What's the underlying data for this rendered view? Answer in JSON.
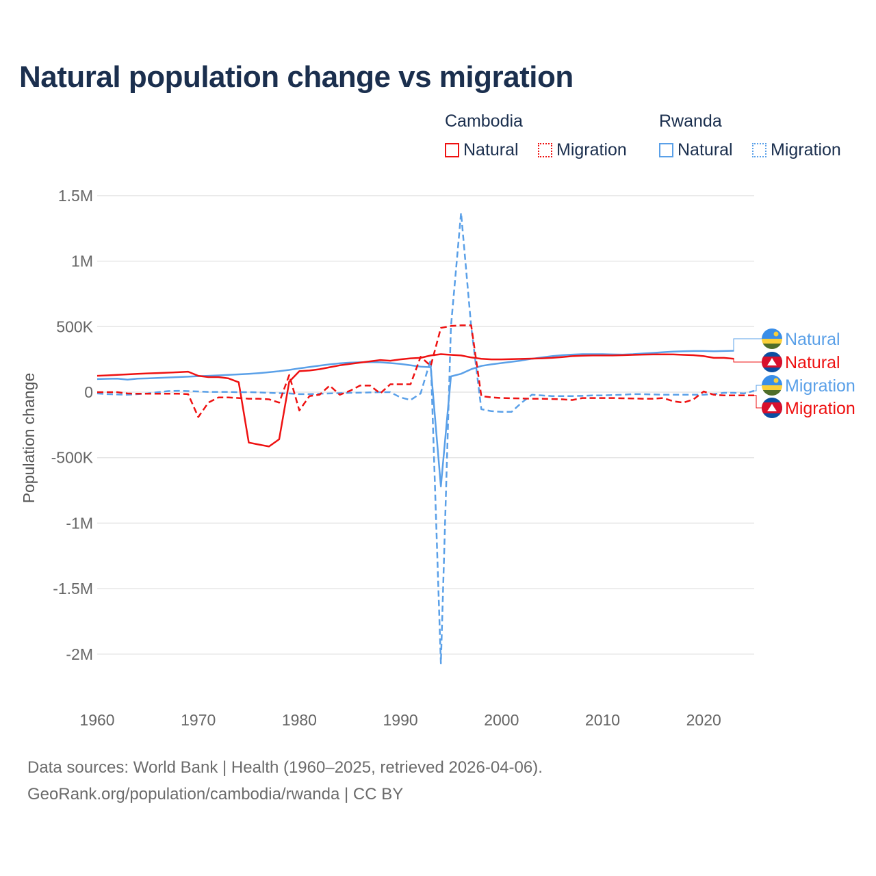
{
  "title": "Natural population change vs migration",
  "legend": {
    "groups": [
      {
        "name": "Cambodia",
        "items": [
          {
            "label": "Natural",
            "style": "solid"
          },
          {
            "label": "Migration",
            "style": "dotted"
          }
        ],
        "color": "#ee1111"
      },
      {
        "name": "Rwanda",
        "items": [
          {
            "label": "Natural",
            "style": "solid"
          },
          {
            "label": "Migration",
            "style": "dotted"
          }
        ],
        "color": "#5aa0e8"
      }
    ]
  },
  "footer": {
    "line1": "Data sources: World Bank | Health (1960–2025, retrieved 2026-04-06).",
    "line2": "GeoRank.org/population/cambodia/rwanda | CC BY"
  },
  "chart_data": {
    "type": "line",
    "title": "Natural population change vs migration",
    "xlabel": "",
    "ylabel": "Population change",
    "xlim": [
      1960,
      2025
    ],
    "ylim": [
      -2200000,
      1600000
    ],
    "x_ticks": [
      1960,
      1970,
      1980,
      1990,
      2000,
      2010,
      2020
    ],
    "x_tick_labels": [
      "1960",
      "1970",
      "1980",
      "1990",
      "2000",
      "2010",
      "2020"
    ],
    "y_ticks": [
      1500000,
      1000000,
      500000,
      0,
      -500000,
      -1000000,
      -1500000,
      -2000000
    ],
    "y_tick_labels": [
      "1.5M",
      "1M",
      "500K",
      "0",
      "-500K",
      "-1M",
      "-1.5M",
      "-2M"
    ],
    "grid": true,
    "legend_placement": "top-right",
    "x_start": 1960,
    "unit": "thousands",
    "series": [
      {
        "name": "Rwanda Natural",
        "label": "Natural",
        "color": "#5aa0e8",
        "dash": false,
        "flag": "rwanda",
        "values": [
          100,
          102,
          103,
          95,
          103,
          105,
          108,
          112,
          115,
          118,
          122,
          125,
          128,
          132,
          136,
          140,
          145,
          152,
          160,
          170,
          182,
          192,
          202,
          212,
          220,
          225,
          228,
          230,
          228,
          222,
          215,
          205,
          195,
          190,
          -720,
          120,
          140,
          175,
          200,
          212,
          222,
          232,
          242,
          255,
          265,
          275,
          282,
          287,
          290,
          290,
          290,
          288,
          287,
          290,
          295,
          300,
          305,
          310,
          312,
          314,
          314,
          312,
          314,
          316,
          null,
          null
        ]
      },
      {
        "name": "Cambodia Natural",
        "label": "Natural",
        "color": "#ee1111",
        "dash": false,
        "flag": "cambodia",
        "values": [
          125,
          128,
          132,
          136,
          140,
          143,
          146,
          149,
          152,
          156,
          125,
          115,
          115,
          105,
          75,
          -385,
          -400,
          -415,
          -360,
          80,
          160,
          165,
          175,
          190,
          205,
          215,
          225,
          235,
          245,
          240,
          250,
          258,
          262,
          280,
          290,
          285,
          280,
          265,
          255,
          250,
          250,
          252,
          254,
          256,
          258,
          262,
          268,
          275,
          278,
          280,
          280,
          280,
          282,
          285,
          287,
          288,
          289,
          288,
          285,
          282,
          275,
          262,
          262,
          255,
          null,
          null
        ]
      },
      {
        "name": "Rwanda Migration",
        "label": "Migration",
        "color": "#5aa0e8",
        "dash": true,
        "flag": "rwanda",
        "values": [
          -10,
          -15,
          -18,
          -20,
          -15,
          -10,
          0,
          8,
          10,
          8,
          5,
          2,
          2,
          2,
          0,
          0,
          -2,
          -5,
          -8,
          -10,
          -15,
          -15,
          -12,
          -10,
          -8,
          -5,
          -4,
          -2,
          0,
          0,
          -40,
          -60,
          -10,
          250,
          -2070,
          500,
          1370,
          500,
          -130,
          -145,
          -150,
          -150,
          -80,
          -20,
          -25,
          -30,
          -30,
          -30,
          -28,
          -25,
          -25,
          -22,
          -20,
          -15,
          -15,
          -18,
          -20,
          -20,
          -20,
          -20,
          -20,
          -15,
          -5,
          -5,
          -10,
          10
        ]
      },
      {
        "name": "Cambodia Migration",
        "label": "Migration",
        "color": "#ee1111",
        "dash": true,
        "flag": "cambodia",
        "values": [
          0,
          0,
          0,
          -10,
          -12,
          -12,
          -12,
          -12,
          -12,
          -15,
          -190,
          -80,
          -40,
          -40,
          -45,
          -50,
          -50,
          -55,
          -80,
          130,
          -140,
          -30,
          -20,
          50,
          -20,
          10,
          50,
          50,
          -10,
          60,
          60,
          60,
          270,
          200,
          490,
          505,
          510,
          510,
          -30,
          -40,
          -45,
          -47,
          -48,
          -50,
          -50,
          -52,
          -55,
          -60,
          -45,
          -45,
          -45,
          -45,
          -47,
          -48,
          -50,
          -50,
          -45,
          -70,
          -80,
          -55,
          5,
          -20,
          -25,
          -25,
          -25,
          -25
        ]
      }
    ]
  }
}
